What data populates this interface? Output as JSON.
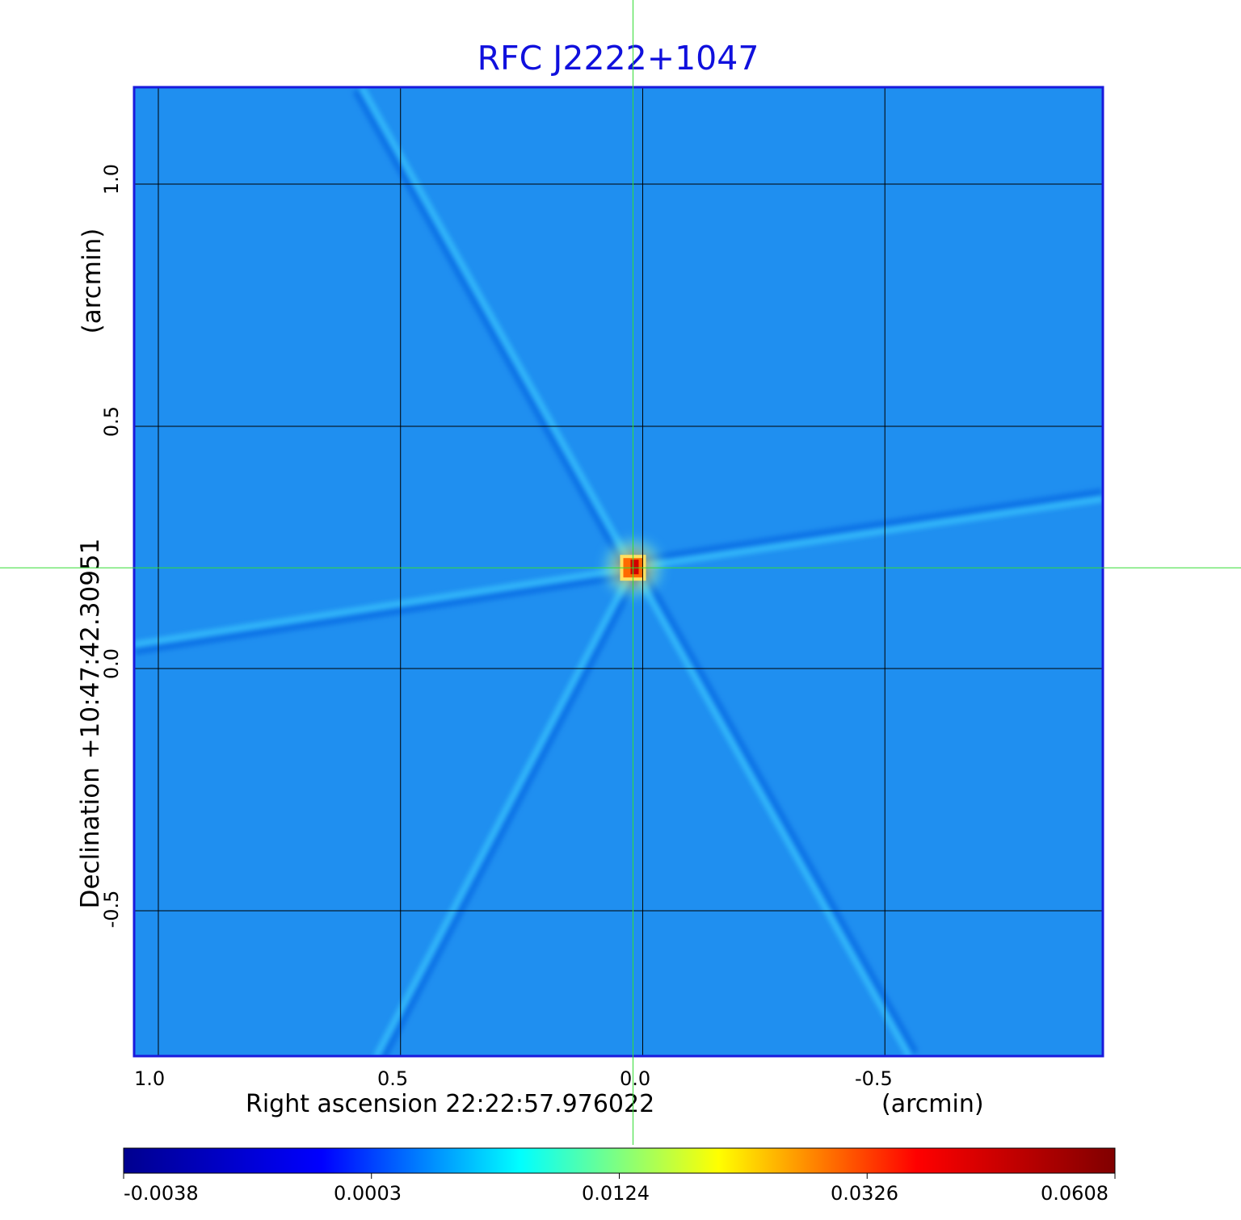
{
  "title": "RFC J2222+1047",
  "x_axis": {
    "label": "Right ascension  22:22:57.976022",
    "unit": "(arcmin)",
    "ticks": [
      "1.0",
      "0.5",
      "0.0",
      "-0.5"
    ]
  },
  "y_axis": {
    "label": "Declination  +10:47:42.30951",
    "unit": "(arcmin)",
    "ticks": [
      "1.0",
      "0.5",
      "0.0",
      "-0.5"
    ]
  },
  "colorbar": {
    "ticks": [
      "-0.0038",
      "0.0003",
      "0.0124",
      "0.0326",
      "0.0608"
    ],
    "colormap": [
      "#00008f",
      "#0000ff",
      "#00ffff",
      "#ffff00",
      "#ff0000",
      "#800000"
    ]
  },
  "colors": {
    "title": "#1010dd",
    "frame": "#1a1adc",
    "background_map": "#1f8ff0",
    "crosshair": "#33dd33",
    "grid": "#000000"
  },
  "chart_data": {
    "type": "heatmap",
    "title": "RFC J2222+1047",
    "xlabel": "Right ascension  22:22:57.976022",
    "ylabel": "Declination  +10:47:42.30951",
    "x_unit": "arcmin",
    "y_unit": "arcmin",
    "xlim": [
      1.05,
      -0.95
    ],
    "ylim": [
      -0.8,
      1.2
    ],
    "x_ticks": [
      1.0,
      0.5,
      0.0,
      -0.5
    ],
    "y_ticks": [
      1.0,
      0.5,
      0.0,
      -0.5
    ],
    "grid": true,
    "crosshair": {
      "x": 0.02,
      "y": 0.208
    },
    "peak": {
      "x": 0.02,
      "y": 0.208,
      "value": 0.0608
    },
    "colorbar_range": [
      -0.0038,
      0.0608
    ],
    "colorbar_ticks": [
      -0.0038,
      0.0003,
      0.0124,
      0.0326,
      0.0608
    ],
    "features": [
      {
        "name": "upper-left streak",
        "from": [
          0.58,
          1.2
        ],
        "to": [
          0.02,
          0.208
        ]
      },
      {
        "name": "right streak",
        "from": [
          -0.95,
          0.35
        ],
        "to": [
          0.02,
          0.208
        ]
      },
      {
        "name": "left streak",
        "from": [
          1.05,
          0.05
        ],
        "to": [
          0.02,
          0.208
        ]
      },
      {
        "name": "lower-right streak",
        "from": [
          -0.55,
          -0.8
        ],
        "to": [
          0.02,
          0.208
        ]
      },
      {
        "name": "lower-left streak",
        "from": [
          0.55,
          -0.8
        ],
        "to": [
          0.02,
          0.208
        ]
      }
    ]
  }
}
